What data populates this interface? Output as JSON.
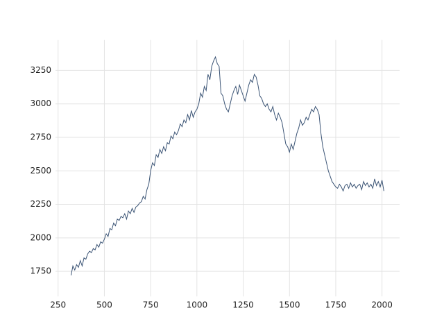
{
  "chart_data": {
    "type": "line",
    "x": [
      320,
      330,
      340,
      350,
      360,
      370,
      380,
      390,
      400,
      410,
      420,
      430,
      440,
      450,
      460,
      470,
      480,
      490,
      500,
      510,
      520,
      530,
      540,
      550,
      560,
      570,
      580,
      590,
      600,
      610,
      620,
      630,
      640,
      650,
      660,
      670,
      680,
      690,
      700,
      710,
      720,
      730,
      740,
      750,
      760,
      770,
      780,
      790,
      800,
      810,
      820,
      830,
      840,
      850,
      860,
      870,
      880,
      890,
      900,
      910,
      920,
      930,
      940,
      950,
      960,
      970,
      980,
      990,
      1000,
      1010,
      1020,
      1030,
      1040,
      1050,
      1060,
      1070,
      1080,
      1090,
      1100,
      1110,
      1120,
      1130,
      1140,
      1150,
      1160,
      1170,
      1180,
      1190,
      1200,
      1210,
      1220,
      1230,
      1240,
      1250,
      1260,
      1270,
      1280,
      1290,
      1300,
      1310,
      1320,
      1330,
      1340,
      1350,
      1360,
      1370,
      1380,
      1390,
      1400,
      1410,
      1420,
      1430,
      1440,
      1450,
      1460,
      1470,
      1480,
      1490,
      1500,
      1510,
      1520,
      1530,
      1540,
      1550,
      1560,
      1570,
      1580,
      1590,
      1600,
      1610,
      1620,
      1630,
      1640,
      1650,
      1660,
      1670,
      1680,
      1690,
      1700,
      1710,
      1720,
      1730,
      1740,
      1750,
      1760,
      1770,
      1780,
      1790,
      1800,
      1810,
      1820,
      1830,
      1840,
      1850,
      1860,
      1870,
      1880,
      1890,
      1900,
      1910,
      1920,
      1930,
      1940,
      1950,
      1960,
      1970,
      1980,
      1990,
      2000,
      2010
    ],
    "series": [
      {
        "color": "#3b5475",
        "values": [
          1720,
          1790,
          1760,
          1800,
          1780,
          1830,
          1790,
          1850,
          1840,
          1880,
          1900,
          1890,
          1920,
          1910,
          1950,
          1930,
          1970,
          1960,
          1990,
          2030,
          2010,
          2070,
          2060,
          2110,
          2090,
          2140,
          2130,
          2160,
          2150,
          2180,
          2140,
          2200,
          2180,
          2220,
          2190,
          2230,
          2240,
          2260,
          2270,
          2310,
          2290,
          2360,
          2400,
          2500,
          2560,
          2540,
          2620,
          2600,
          2660,
          2630,
          2680,
          2650,
          2710,
          2700,
          2760,
          2740,
          2790,
          2770,
          2800,
          2850,
          2830,
          2880,
          2860,
          2920,
          2880,
          2950,
          2900,
          2940,
          2960,
          3000,
          3080,
          3050,
          3130,
          3100,
          3220,
          3180,
          3280,
          3320,
          3350,
          3300,
          3280,
          3080,
          3060,
          3000,
          2960,
          2940,
          3000,
          3060,
          3100,
          3130,
          3070,
          3140,
          3100,
          3060,
          3020,
          3080,
          3140,
          3180,
          3160,
          3220,
          3200,
          3140,
          3060,
          3040,
          3000,
          2980,
          3000,
          2960,
          2940,
          2980,
          2920,
          2880,
          2930,
          2900,
          2860,
          2780,
          2700,
          2680,
          2640,
          2700,
          2660,
          2720,
          2780,
          2820,
          2880,
          2840,
          2860,
          2900,
          2880,
          2920,
          2960,
          2940,
          2980,
          2960,
          2920,
          2780,
          2680,
          2620,
          2560,
          2500,
          2460,
          2420,
          2400,
          2380,
          2370,
          2400,
          2380,
          2350,
          2390,
          2400,
          2370,
          2410,
          2380,
          2400,
          2370,
          2390,
          2400,
          2360,
          2420,
          2390,
          2410,
          2380,
          2400,
          2370,
          2440,
          2390,
          2420,
          2380,
          2430,
          2350
        ]
      }
    ],
    "xlim": [
      236,
      2095
    ],
    "ylim": [
      1563,
      3477
    ],
    "xticks": [
      250,
      500,
      750,
      1000,
      1250,
      1500,
      1750,
      2000
    ],
    "yticks": [
      1750,
      2000,
      2250,
      2500,
      2750,
      3000,
      3250
    ],
    "grid": true
  }
}
